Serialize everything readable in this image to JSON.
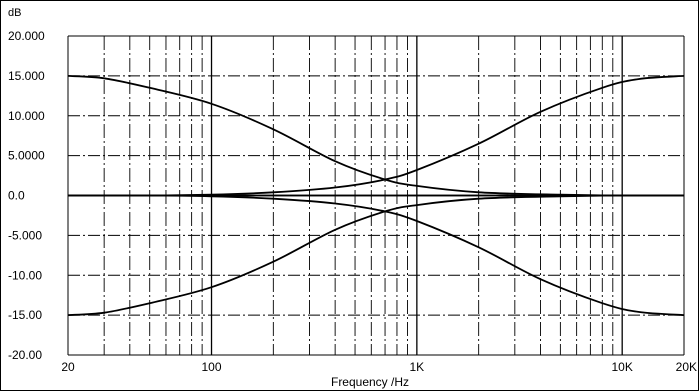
{
  "chart_data": {
    "type": "line",
    "title": "",
    "ylabel": "dB",
    "xlabel": "Frequency /Hz",
    "x_scale": "log",
    "xlim": [
      20,
      20000
    ],
    "ylim": [
      -20,
      20
    ],
    "grid": true,
    "x_tick_labels": [
      {
        "value": 20,
        "label": "20"
      },
      {
        "value": 100,
        "label": "100"
      },
      {
        "value": 1000,
        "label": "1K"
      },
      {
        "value": 10000,
        "label": "10K"
      },
      {
        "value": 20000,
        "label": "20K"
      }
    ],
    "y_tick_labels": [
      {
        "value": 20,
        "label": "20.000"
      },
      {
        "value": 15,
        "label": "15.000"
      },
      {
        "value": 10,
        "label": "10.000"
      },
      {
        "value": 5,
        "label": "5.0000"
      },
      {
        "value": 0,
        "label": "0.0"
      },
      {
        "value": -5,
        "label": "-5.000"
      },
      {
        "value": -10,
        "label": "-10.00"
      },
      {
        "value": -15,
        "label": "-15.00"
      },
      {
        "value": -20,
        "label": "-20.00"
      }
    ],
    "series": [
      {
        "x": [
          20,
          30,
          50,
          100,
          200,
          400,
          700,
          1000,
          2000,
          5000,
          10000,
          20000
        ],
        "y": [
          15.0,
          14.7,
          13.5,
          11.5,
          8.3,
          4.3,
          2.0,
          1.2,
          0.4,
          0.1,
          0.0,
          0.0
        ]
      },
      {
        "x": [
          20,
          30,
          50,
          100,
          200,
          400,
          700,
          1000,
          2000,
          5000,
          10000,
          20000
        ],
        "y": [
          -15.0,
          -14.7,
          -13.5,
          -11.5,
          -8.3,
          -4.3,
          -2.0,
          -1.2,
          -0.4,
          -0.1,
          0.0,
          0.0
        ]
      },
      {
        "x": [
          20,
          50,
          100,
          200,
          400,
          700,
          1000,
          2000,
          4000,
          8000,
          12000,
          20000
        ],
        "y": [
          0.0,
          0.0,
          0.1,
          0.4,
          1.0,
          2.0,
          3.2,
          6.5,
          10.5,
          13.5,
          14.6,
          15.0
        ]
      },
      {
        "x": [
          20,
          50,
          100,
          200,
          400,
          700,
          1000,
          2000,
          4000,
          8000,
          12000,
          20000
        ],
        "y": [
          0.0,
          0.0,
          -0.1,
          -0.4,
          -1.0,
          -2.0,
          -3.2,
          -6.5,
          -10.5,
          -13.5,
          -14.6,
          -15.0
        ]
      },
      {
        "x": [
          20,
          20000
        ],
        "y": [
          0.0,
          0.0
        ]
      }
    ]
  }
}
